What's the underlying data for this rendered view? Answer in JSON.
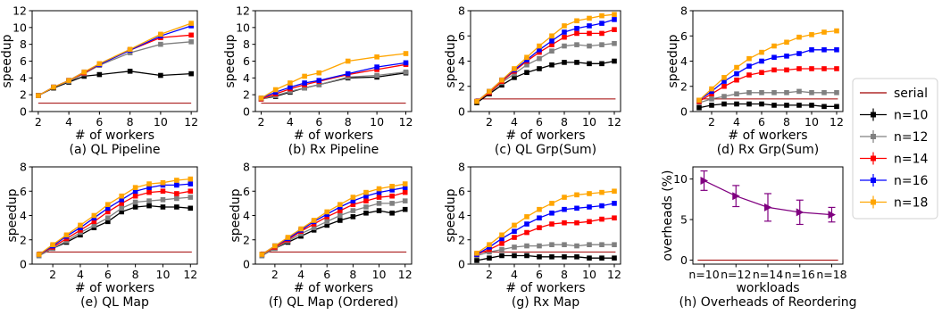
{
  "legend": {
    "placement": "right",
    "entries": [
      {
        "label": "serial",
        "color": "#a00000",
        "marker": "none"
      },
      {
        "label": "n=10",
        "color": "#000000",
        "marker": "square"
      },
      {
        "label": "n=12",
        "color": "#808080",
        "marker": "square"
      },
      {
        "label": "n=14",
        "color": "#ff0000",
        "marker": "square"
      },
      {
        "label": "n=16",
        "color": "#0000ff",
        "marker": "square"
      },
      {
        "label": "n=18",
        "color": "#ffa500",
        "marker": "square"
      }
    ]
  },
  "chart_data": [
    {
      "type": "line",
      "caption": "(a) QL Pipeline",
      "xlabel": "# of workers",
      "ylabel": "speedup",
      "xlim": [
        1.6,
        12.4
      ],
      "ylim": [
        0,
        12
      ],
      "xticks": [
        2,
        4,
        6,
        8,
        10,
        12
      ],
      "yticks": [
        0,
        2,
        4,
        6,
        8,
        10,
        12
      ],
      "x": [
        2,
        3,
        4,
        5,
        6,
        8,
        10,
        12
      ],
      "serial": 1,
      "series": [
        {
          "name": "n=10",
          "values": [
            1.9,
            2.8,
            3.5,
            4.2,
            4.4,
            4.8,
            4.3,
            4.5
          ]
        },
        {
          "name": "n=12",
          "values": [
            1.9,
            2.9,
            3.6,
            4.5,
            5.5,
            7.0,
            8.0,
            8.3
          ]
        },
        {
          "name": "n=14",
          "values": [
            1.9,
            2.9,
            3.7,
            4.6,
            5.6,
            7.3,
            8.8,
            9.1
          ]
        },
        {
          "name": "n=16",
          "values": [
            1.9,
            2.9,
            3.7,
            4.7,
            5.6,
            7.3,
            9.0,
            10.2
          ]
        },
        {
          "name": "n=18",
          "values": [
            1.9,
            2.9,
            3.7,
            4.7,
            5.7,
            7.4,
            9.2,
            10.5
          ]
        }
      ]
    },
    {
      "type": "line",
      "caption": "(b) Rx Pipeline",
      "xlabel": "# of workers",
      "ylabel": "speedup",
      "xlim": [
        1.6,
        12.4
      ],
      "ylim": [
        0,
        12
      ],
      "xticks": [
        2,
        4,
        6,
        8,
        10,
        12
      ],
      "yticks": [
        0,
        2,
        4,
        6,
        8,
        10,
        12
      ],
      "x": [
        2,
        3,
        4,
        5,
        6,
        8,
        10,
        12
      ],
      "serial": 1,
      "series": [
        {
          "name": "n=10",
          "values": [
            1.5,
            1.8,
            2.3,
            2.8,
            3.2,
            4.0,
            4.1,
            4.6
          ]
        },
        {
          "name": "n=12",
          "values": [
            1.5,
            1.9,
            2.4,
            2.8,
            3.2,
            4.1,
            4.3,
            4.7
          ]
        },
        {
          "name": "n=14",
          "values": [
            1.5,
            2.1,
            2.7,
            3.2,
            3.6,
            4.4,
            5.0,
            5.6
          ]
        },
        {
          "name": "n=16",
          "values": [
            1.6,
            2.3,
            2.9,
            3.4,
            3.7,
            4.5,
            5.3,
            5.8
          ]
        },
        {
          "name": "n=18",
          "values": [
            1.6,
            2.6,
            3.4,
            4.2,
            4.6,
            6.0,
            6.5,
            6.9
          ]
        }
      ]
    },
    {
      "type": "line",
      "caption": "(c) QL Grp(Sum)",
      "xlabel": "# of workers",
      "ylabel": "speedup",
      "xlim": [
        0.5,
        12.5
      ],
      "ylim": [
        0,
        8
      ],
      "xticks": [
        2,
        4,
        6,
        8,
        10,
        12
      ],
      "yticks": [
        0,
        2,
        4,
        6,
        8
      ],
      "x": [
        1,
        2,
        3,
        4,
        5,
        6,
        7,
        8,
        9,
        10,
        11,
        12
      ],
      "serial": 1,
      "series": [
        {
          "name": "n=10",
          "values": [
            0.7,
            1.4,
            2.1,
            2.7,
            3.1,
            3.4,
            3.7,
            3.9,
            3.9,
            3.8,
            3.8,
            4.0
          ]
        },
        {
          "name": "n=12",
          "values": [
            0.8,
            1.5,
            2.3,
            3.0,
            3.7,
            4.2,
            4.8,
            5.2,
            5.3,
            5.2,
            5.3,
            5.4
          ]
        },
        {
          "name": "n=14",
          "values": [
            0.8,
            1.5,
            2.4,
            3.2,
            4.0,
            4.7,
            5.3,
            5.9,
            6.2,
            6.2,
            6.2,
            6.5
          ]
        },
        {
          "name": "n=16",
          "values": [
            0.8,
            1.6,
            2.5,
            3.3,
            4.1,
            4.9,
            5.6,
            6.3,
            6.6,
            6.8,
            7.0,
            7.3
          ]
        },
        {
          "name": "n=18",
          "values": [
            0.8,
            1.6,
            2.5,
            3.4,
            4.3,
            5.2,
            6.0,
            6.8,
            7.2,
            7.4,
            7.6,
            7.7
          ]
        }
      ]
    },
    {
      "type": "line",
      "caption": "(d) Rx Grp(Sum)",
      "xlabel": "# of workers",
      "ylabel": "speedup",
      "xlim": [
        0.5,
        12.5
      ],
      "ylim": [
        0,
        8
      ],
      "xticks": [
        2,
        4,
        6,
        8,
        10,
        12
      ],
      "yticks": [
        0,
        2,
        4,
        6,
        8
      ],
      "x": [
        1,
        2,
        3,
        4,
        5,
        6,
        7,
        8,
        9,
        10,
        11,
        12
      ],
      "serial": 1,
      "series": [
        {
          "name": "n=10",
          "values": [
            0.3,
            0.5,
            0.6,
            0.6,
            0.6,
            0.6,
            0.5,
            0.5,
            0.5,
            0.5,
            0.4,
            0.4
          ]
        },
        {
          "name": "n=12",
          "values": [
            0.7,
            1.0,
            1.2,
            1.4,
            1.5,
            1.5,
            1.5,
            1.5,
            1.6,
            1.5,
            1.5,
            1.5
          ]
        },
        {
          "name": "n=14",
          "values": [
            0.8,
            1.4,
            2.0,
            2.5,
            2.9,
            3.1,
            3.3,
            3.3,
            3.4,
            3.4,
            3.4,
            3.4
          ]
        },
        {
          "name": "n=16",
          "values": [
            0.9,
            1.6,
            2.4,
            3.0,
            3.6,
            4.0,
            4.3,
            4.4,
            4.6,
            4.9,
            4.9,
            4.9
          ]
        },
        {
          "name": "n=18",
          "values": [
            0.9,
            1.8,
            2.7,
            3.5,
            4.2,
            4.7,
            5.2,
            5.5,
            5.9,
            6.1,
            6.3,
            6.4
          ]
        }
      ]
    },
    {
      "type": "line",
      "caption": "(e) QL Map",
      "xlabel": "# of workers",
      "ylabel": "speedup",
      "xlim": [
        0.5,
        12.5
      ],
      "ylim": [
        0,
        8
      ],
      "xticks": [
        2,
        4,
        6,
        8,
        10,
        12
      ],
      "yticks": [
        0,
        2,
        4,
        6,
        8
      ],
      "x": [
        1,
        2,
        3,
        4,
        5,
        6,
        7,
        8,
        9,
        10,
        11,
        12
      ],
      "serial": 1,
      "series": [
        {
          "name": "n=10",
          "values": [
            0.7,
            1.3,
            1.8,
            2.4,
            3.0,
            3.5,
            4.3,
            4.7,
            4.8,
            4.7,
            4.7,
            4.6
          ]
        },
        {
          "name": "n=12",
          "values": [
            0.7,
            1.3,
            1.9,
            2.6,
            3.2,
            3.8,
            4.6,
            5.1,
            5.2,
            5.3,
            5.4,
            5.5
          ]
        },
        {
          "name": "n=14",
          "values": [
            0.8,
            1.4,
            2.1,
            2.8,
            3.5,
            4.3,
            5.0,
            5.6,
            5.9,
            6.0,
            5.8,
            6.0
          ]
        },
        {
          "name": "n=16",
          "values": [
            0.8,
            1.5,
            2.3,
            3.0,
            3.8,
            4.6,
            5.3,
            6.0,
            6.3,
            6.5,
            6.5,
            6.6
          ]
        },
        {
          "name": "n=18",
          "values": [
            0.8,
            1.6,
            2.4,
            3.2,
            4.0,
            4.9,
            5.6,
            6.3,
            6.6,
            6.7,
            6.9,
            7.0
          ]
        }
      ]
    },
    {
      "type": "line",
      "caption": "(f) QL Map (Ordered)",
      "xlabel": "# of workers",
      "ylabel": "speedup",
      "xlim": [
        0.5,
        12.5
      ],
      "ylim": [
        0,
        8
      ],
      "xticks": [
        2,
        4,
        6,
        8,
        10,
        12
      ],
      "yticks": [
        0,
        2,
        4,
        6,
        8
      ],
      "x": [
        1,
        2,
        3,
        4,
        5,
        6,
        7,
        8,
        9,
        10,
        11,
        12
      ],
      "serial": 1,
      "series": [
        {
          "name": "n=10",
          "values": [
            0.7,
            1.3,
            1.8,
            2.3,
            2.8,
            3.2,
            3.6,
            3.9,
            4.2,
            4.4,
            4.2,
            4.5
          ]
        },
        {
          "name": "n=12",
          "values": [
            0.7,
            1.3,
            1.9,
            2.5,
            3.0,
            3.5,
            4.0,
            4.4,
            4.7,
            5.0,
            5.0,
            5.2
          ]
        },
        {
          "name": "n=14",
          "values": [
            0.8,
            1.4,
            2.0,
            2.7,
            3.3,
            3.9,
            4.4,
            4.9,
            5.2,
            5.5,
            5.6,
            5.9
          ]
        },
        {
          "name": "n=16",
          "values": [
            0.8,
            1.5,
            2.1,
            2.8,
            3.5,
            4.1,
            4.7,
            5.2,
            5.6,
            5.9,
            6.1,
            6.3
          ]
        },
        {
          "name": "n=18",
          "values": [
            0.8,
            1.5,
            2.2,
            2.9,
            3.6,
            4.3,
            4.9,
            5.5,
            5.9,
            6.2,
            6.4,
            6.6
          ]
        }
      ]
    },
    {
      "type": "line",
      "caption": "(g) Rx Map",
      "xlabel": "# of workers",
      "ylabel": "speedup",
      "xlim": [
        0.5,
        12.5
      ],
      "ylim": [
        0,
        8
      ],
      "xticks": [
        2,
        4,
        6,
        8,
        10,
        12
      ],
      "yticks": [
        0,
        2,
        4,
        6,
        8
      ],
      "x": [
        1,
        2,
        3,
        4,
        5,
        6,
        7,
        8,
        9,
        10,
        11,
        12
      ],
      "serial": 1,
      "series": [
        {
          "name": "n=10",
          "values": [
            0.3,
            0.5,
            0.7,
            0.7,
            0.7,
            0.6,
            0.6,
            0.6,
            0.6,
            0.5,
            0.5,
            0.5
          ]
        },
        {
          "name": "n=12",
          "values": [
            0.7,
            1.0,
            1.2,
            1.4,
            1.5,
            1.5,
            1.6,
            1.6,
            1.5,
            1.6,
            1.6,
            1.6
          ]
        },
        {
          "name": "n=14",
          "values": [
            0.8,
            1.2,
            1.7,
            2.2,
            2.6,
            3.0,
            3.3,
            3.4,
            3.4,
            3.5,
            3.7,
            3.8
          ]
        },
        {
          "name": "n=16",
          "values": [
            0.8,
            1.4,
            2.1,
            2.7,
            3.3,
            3.8,
            4.2,
            4.5,
            4.6,
            4.7,
            4.8,
            5.0
          ]
        },
        {
          "name": "n=18",
          "values": [
            0.9,
            1.6,
            2.4,
            3.2,
            3.9,
            4.5,
            5.0,
            5.5,
            5.7,
            5.8,
            5.9,
            6.0
          ]
        }
      ]
    },
    {
      "type": "line",
      "caption": "(h) Overheads of Reordering",
      "xlabel": "workloads",
      "ylabel": "overheads (%)",
      "ylim": [
        -0.5,
        11.5
      ],
      "categories": [
        "n=10",
        "n=12",
        "n=14",
        "n=16",
        "n=18"
      ],
      "yticks": [
        0,
        5,
        10
      ],
      "baseline": 0,
      "series": [
        {
          "name": "",
          "color": "#800080",
          "values": [
            9.8,
            7.9,
            6.5,
            5.9,
            5.6
          ],
          "errors": [
            1.2,
            1.3,
            1.7,
            1.5,
            0.9
          ]
        }
      ]
    }
  ]
}
